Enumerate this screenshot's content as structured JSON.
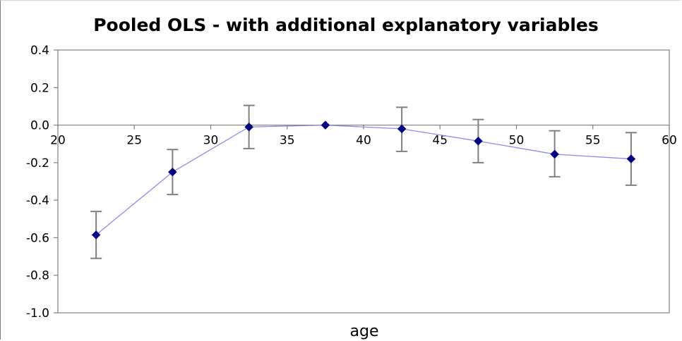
{
  "chart_data": {
    "type": "scatter",
    "title": "Pooled OLS - with additional explanatory variables",
    "xlabel": "age",
    "ylabel": "",
    "xlim": [
      20,
      60
    ],
    "ylim": [
      -1.0,
      0.4
    ],
    "xticks": [
      20,
      25,
      30,
      35,
      40,
      45,
      50,
      55,
      60
    ],
    "yticks": [
      0.4,
      0.2,
      0.0,
      -0.2,
      -0.4,
      -0.6,
      -0.8,
      -1.0
    ],
    "ytick_labels": [
      "0.4",
      "0.2",
      "0.0",
      "-0.2",
      "-0.4",
      "-0.6",
      "-0.8",
      "-1.0"
    ],
    "grid": false,
    "legend": "none",
    "colors": {
      "line": "#8c8ce6",
      "marker": "#000080",
      "error_bar": "#808080",
      "axis": "#808080"
    },
    "series": [
      {
        "x": [
          22.5,
          27.5,
          32.5,
          37.5,
          42.5,
          47.5,
          52.5,
          57.5
        ],
        "y": [
          -0.585,
          -0.25,
          -0.01,
          0.0,
          -0.02,
          -0.085,
          -0.155,
          -0.18
        ],
        "y_upper": [
          -0.46,
          -0.13,
          0.105,
          0.0,
          0.095,
          0.03,
          -0.03,
          -0.04
        ],
        "y_lower": [
          -0.71,
          -0.37,
          -0.125,
          0.0,
          -0.14,
          -0.2,
          -0.275,
          -0.32
        ]
      }
    ]
  }
}
